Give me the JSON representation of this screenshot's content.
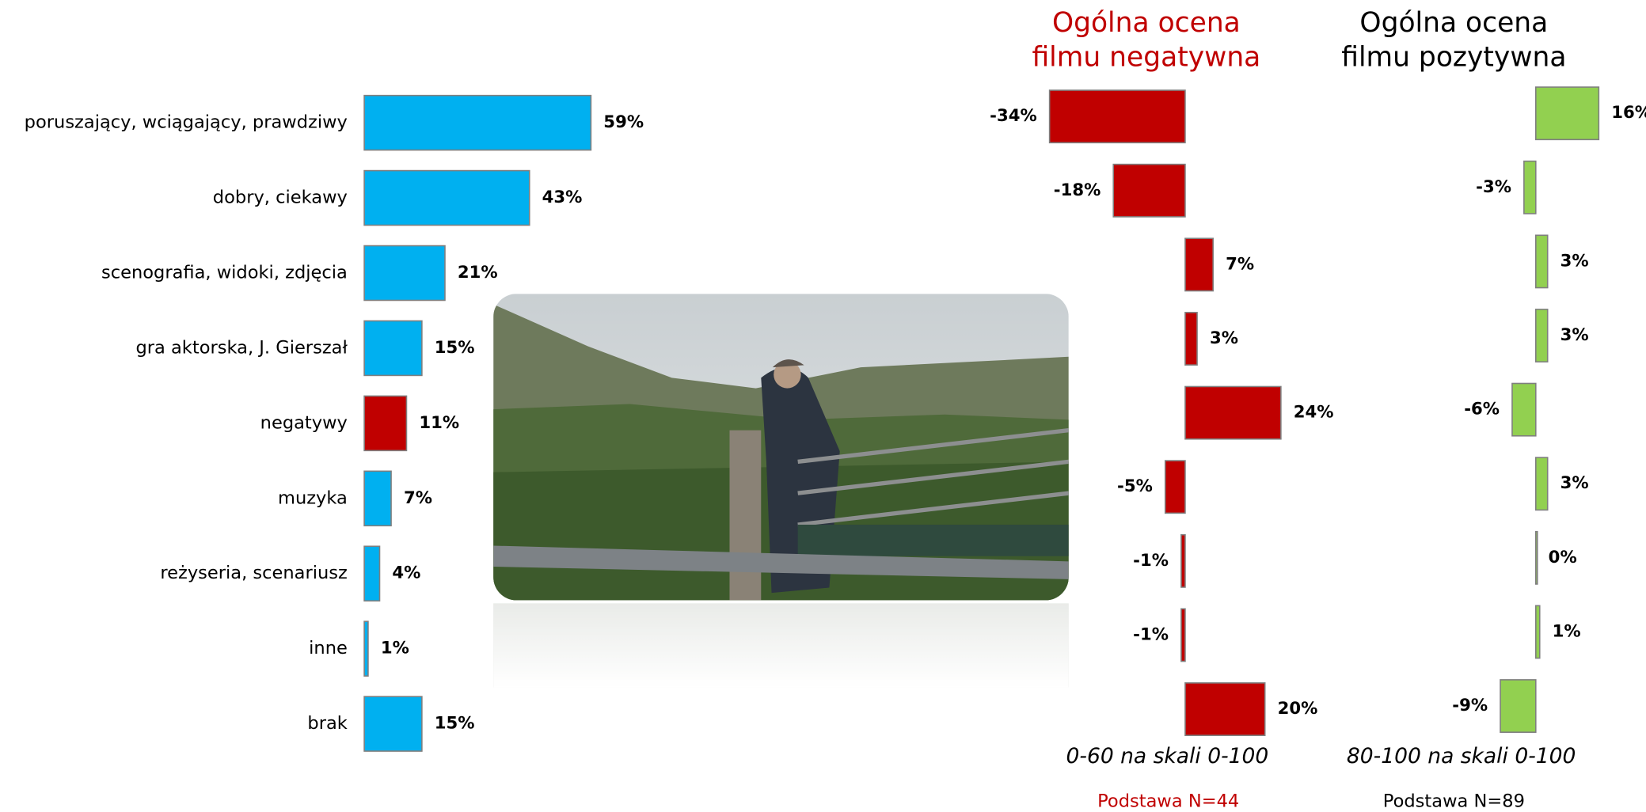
{
  "chart_data": [
    {
      "type": "bar",
      "categories": [
        "poruszający, wciągający, prawdziwy",
        "dobry, ciekawy",
        "scenografia, widoki, zdjęcia",
        "gra aktorska, J. Gierszał",
        "negatywy",
        "muzyka",
        "reżyseria, scenariusz",
        "inne",
        "brak"
      ],
      "values": [
        59,
        43,
        21,
        15,
        11,
        7,
        4,
        1,
        15
      ],
      "value_labels": [
        "59%",
        "43%",
        "21%",
        "15%",
        "11%",
        "7%",
        "4%",
        "1%",
        "15%"
      ],
      "colors": [
        "#00b0f0",
        "#00b0f0",
        "#00b0f0",
        "#00b0f0",
        "#c00000",
        "#00b0f0",
        "#00b0f0",
        "#00b0f0",
        "#00b0f0"
      ]
    },
    {
      "type": "bar",
      "title": "Ogólna ocena filmu negatywna",
      "subtitle": "0-60 na skali 0-100",
      "note": "Podstawa N=44",
      "values": [
        -34,
        -18,
        7,
        3,
        24,
        -5,
        -1,
        -1,
        20
      ],
      "value_labels": [
        "-34%",
        "-18%",
        "7%",
        "3%",
        "24%",
        "-5%",
        "-1%",
        "-1%",
        "20%"
      ],
      "color": "#c00000"
    },
    {
      "type": "bar",
      "title": "Ogólna ocena filmu pozytywna",
      "subtitle": "80-100 na skali 0-100",
      "note": "Podstawa N=89",
      "values": [
        16,
        -3,
        3,
        3,
        -6,
        3,
        0,
        1,
        -9
      ],
      "value_labels": [
        "16%",
        "-3%",
        "3%",
        "3%",
        "-6%",
        "3%",
        "0%",
        "1%",
        "-9%"
      ],
      "color": "#92d050"
    }
  ]
}
